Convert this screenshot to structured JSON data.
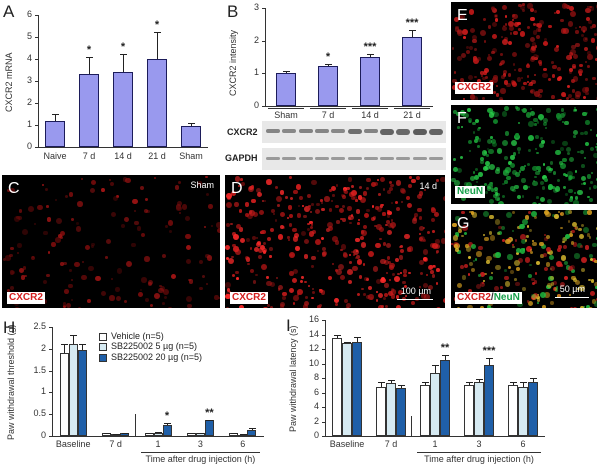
{
  "panels": {
    "A": {
      "letter": "A"
    },
    "B": {
      "letter": "B",
      "blot_labels": [
        "CXCR2",
        "GAPDH"
      ]
    },
    "C": {
      "letter": "C",
      "corner": "Sham",
      "stain": "CXCR2"
    },
    "D": {
      "letter": "D",
      "corner": "14 d",
      "stain": "CXCR2",
      "scale": "100 µm"
    },
    "E": {
      "letter": "E",
      "stain": "CXCR2"
    },
    "F": {
      "letter": "F",
      "stain": "NeuN"
    },
    "G": {
      "letter": "G",
      "stain_a": "CXCR2",
      "stain_sep": "/",
      "stain_b": "NeuN",
      "scale": "50 µm"
    },
    "H": {
      "letter": "H"
    },
    "I": {
      "letter": "I"
    }
  },
  "chart_data": [
    {
      "id": "A",
      "type": "bar",
      "title": "",
      "xlabel": "",
      "ylabel": "CXCR2 mRNA",
      "ylim": [
        0,
        6
      ],
      "yticks": [
        "0",
        "1",
        "2",
        "3",
        "4",
        "5",
        "6"
      ],
      "categories": [
        "Naive",
        "7 d",
        "14 d",
        "21 d",
        "Sham"
      ],
      "values": [
        1.2,
        3.3,
        3.4,
        4.0,
        0.95
      ],
      "errors": [
        0.3,
        0.8,
        0.85,
        1.25,
        0.12
      ],
      "annotations": [
        "",
        "*",
        "*",
        "*",
        ""
      ],
      "color": "#9999ee"
    },
    {
      "id": "B",
      "type": "bar",
      "title": "",
      "xlabel": "",
      "ylabel": "CXCR2 intensity",
      "ylim": [
        0,
        3
      ],
      "yticks": [
        "0",
        "1",
        "2",
        "3"
      ],
      "categories": [
        "Sham",
        "7 d",
        "14 d",
        "21 d"
      ],
      "values": [
        1.0,
        1.22,
        1.5,
        2.12
      ],
      "errors": [
        0.06,
        0.07,
        0.1,
        0.22
      ],
      "annotations": [
        "",
        "*",
        "***",
        "***"
      ],
      "color": "#9999ee"
    },
    {
      "id": "H",
      "type": "bar",
      "title": "",
      "xlabel": "Time after drug injection (h)",
      "ylabel": "Paw withdrawal threshold (g)",
      "ylim": [
        0,
        2.5
      ],
      "yticks": [
        "0",
        "0.5",
        "1",
        "1.5",
        "2",
        "2.5"
      ],
      "categories": [
        "Baseline",
        "7 d",
        "1",
        "3",
        "6"
      ],
      "legend": [
        "Vehicle (n=5)",
        "SB225002  5 µg (n=5)",
        "SB225002  20 µg (n=5)"
      ],
      "series": [
        {
          "name": "Vehicle (n=5)",
          "color": "#ffffff",
          "values": [
            1.9,
            0.07,
            0.07,
            0.07,
            0.07
          ],
          "errors": [
            0.2,
            0.01,
            0.01,
            0.01,
            0.01
          ]
        },
        {
          "name": "SB225002 5 µg (n=5)",
          "color": "#d6eaf2",
          "values": [
            2.1,
            0.04,
            0.08,
            0.06,
            0.03
          ],
          "errors": [
            0.22,
            0.01,
            0.01,
            0.01,
            0.01
          ]
        },
        {
          "name": "SB225002 20 µg (n=5)",
          "color": "#1f5fa8",
          "values": [
            1.97,
            0.07,
            0.25,
            0.36,
            0.14
          ],
          "errors": [
            0.15,
            0.01,
            0.04,
            0.01,
            0.04
          ]
        }
      ],
      "annotations": [
        [
          "",
          "",
          ""
        ],
        [
          "",
          "",
          ""
        ],
        [
          "",
          "",
          "*"
        ],
        [
          "",
          "",
          "**"
        ],
        [
          "",
          "",
          ""
        ]
      ]
    },
    {
      "id": "I",
      "type": "bar",
      "title": "",
      "xlabel": "Time after drug injection (h)",
      "ylabel": "Paw withdrawal latency (s)",
      "ylim": [
        0,
        16
      ],
      "yticks": [
        "0",
        "2",
        "4",
        "6",
        "8",
        "10",
        "12",
        "14",
        "16"
      ],
      "categories": [
        "Baseline",
        "7 d",
        "1",
        "3",
        "6"
      ],
      "series": [
        {
          "name": "Vehicle (n=5)",
          "color": "#ffffff",
          "values": [
            13.5,
            6.8,
            7.0,
            7.0,
            7.0
          ],
          "errors": [
            0.4,
            0.6,
            0.5,
            0.4,
            0.5
          ]
        },
        {
          "name": "SB225002 5 µg (n=5)",
          "color": "#d6eaf2",
          "values": [
            12.8,
            7.3,
            8.7,
            7.5,
            6.8
          ],
          "errors": [
            0.2,
            0.4,
            1.1,
            0.4,
            0.7
          ]
        },
        {
          "name": "SB225002 20 µg (n=5)",
          "color": "#1f5fa8",
          "values": [
            13.0,
            6.6,
            10.5,
            9.8,
            7.5
          ],
          "errors": [
            0.7,
            0.5,
            0.7,
            1.0,
            0.5
          ]
        }
      ],
      "annotations": [
        [
          "",
          "",
          ""
        ],
        [
          "",
          "",
          ""
        ],
        [
          "",
          "",
          "**"
        ],
        [
          "",
          "",
          "***"
        ],
        [
          "",
          "",
          ""
        ]
      ]
    }
  ]
}
